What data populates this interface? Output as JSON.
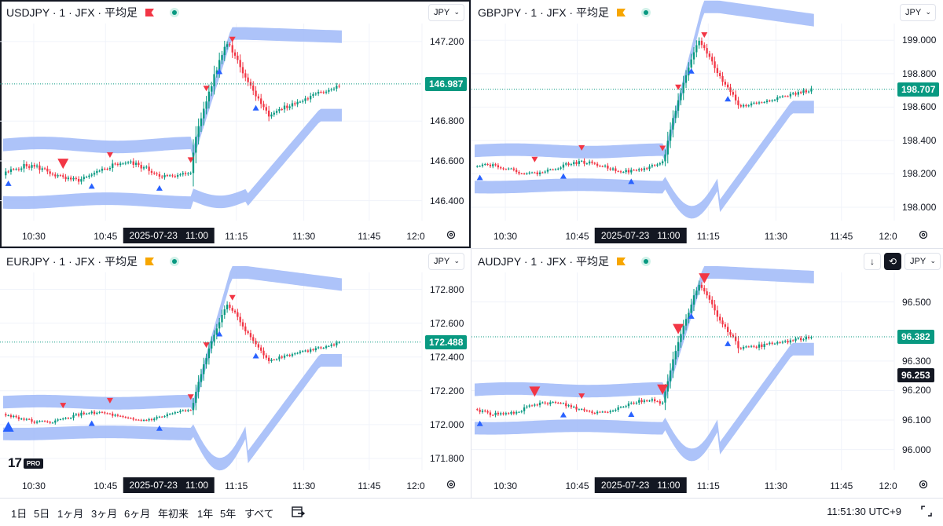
{
  "panes": [
    {
      "symbol_label": "USDJPY · 1 · JFX · 平均足",
      "flag_color": "#f23645",
      "currency": "JPY",
      "last_price": "146.987",
      "price_axis": [
        "147.200",
        "146.800",
        "146.600",
        "146.400"
      ],
      "time_axis": [
        "10:30",
        "10:45",
        "11:15",
        "11:30",
        "11:45",
        "12:0"
      ],
      "crosshair_time": "2025-07-23   11:00",
      "price_range": [
        146.3,
        147.29
      ],
      "series": {
        "start": 146.45,
        "lo": 146.43,
        "hi": 146.63,
        "stepLo": 146.45,
        "stepHi": 146.62,
        "peak": 147.2,
        "trough": 146.83,
        "end": 146.987,
        "top": 147.24,
        "bottom": 146.4,
        "crossY": 147.02
      }
    },
    {
      "symbol_label": "GBPJPY · 1 · JFX · 平均足",
      "flag_color": "#f7a600",
      "currency": "JPY",
      "last_price": "198.707",
      "price_axis": [
        "199.000",
        "198.800",
        "198.600",
        "198.400",
        "198.200",
        "198.000"
      ],
      "time_axis": [
        "10:30",
        "10:45",
        "11:15",
        "11:30",
        "11:45",
        "12:0"
      ],
      "crosshair_time": "2025-07-23   11:00",
      "price_range": [
        197.92,
        199.1
      ],
      "series": {
        "start": 198.17,
        "lo": 198.15,
        "hi": 198.3,
        "stepLo": 198.17,
        "stepHi": 198.3,
        "peak": 199.0,
        "trough": 198.6,
        "end": 198.707,
        "top": 199.2,
        "bottom": 198.0,
        "crossY": 198.707
      }
    },
    {
      "symbol_label": "EURJPY · 1 · JFX · 平均足",
      "flag_color": "#f7a600",
      "currency": "JPY",
      "last_price": "172.488",
      "price_axis": [
        "172.800",
        "172.600",
        "172.400",
        "172.200",
        "172.000",
        "171.800"
      ],
      "time_axis": [
        "10:30",
        "10:45",
        "11:15",
        "11:30",
        "11:45",
        "12:0"
      ],
      "crosshair_time": "2025-07-23   11:00",
      "price_range": [
        171.73,
        172.9
      ],
      "series": {
        "start": 172.03,
        "lo": 171.97,
        "hi": 172.1,
        "stepLo": 172.0,
        "stepHi": 172.1,
        "peak": 172.72,
        "trough": 172.38,
        "end": 172.488,
        "top": 172.9,
        "bottom": 171.8,
        "crossY": 172.488
      }
    },
    {
      "symbol_label": "AUDJPY · 1 · JFX · 平均足",
      "flag_color": "#f7a600",
      "currency": "JPY",
      "last_price": "96.382",
      "crosshair_price": "96.253",
      "price_axis": [
        "96.500",
        "96.300",
        "96.200",
        "96.100",
        "96.000"
      ],
      "time_axis": [
        "10:30",
        "10:45",
        "11:15",
        "11:30",
        "11:45",
        "12:0"
      ],
      "crosshair_time": "2025-07-23   11:00",
      "price_range": [
        95.93,
        96.6
      ],
      "series": {
        "start": 96.1,
        "lo": 96.09,
        "hi": 96.18,
        "stepLo": 96.12,
        "stepHi": 96.19,
        "peak": 96.56,
        "trough": 96.34,
        "end": 96.382,
        "top": 96.6,
        "bottom": 96.0,
        "crossY": 96.382
      }
    }
  ],
  "ranges": [
    "1日",
    "5日",
    "1ヶ月",
    "3ヶ月",
    "6ヶ月",
    "年初来",
    "1年",
    "5年",
    "すべて"
  ],
  "clock": "11:51:30 UTC+9",
  "colors": {
    "up": "#089981",
    "down": "#f23645",
    "band": "#a4bcf8",
    "line": "#089981"
  }
}
